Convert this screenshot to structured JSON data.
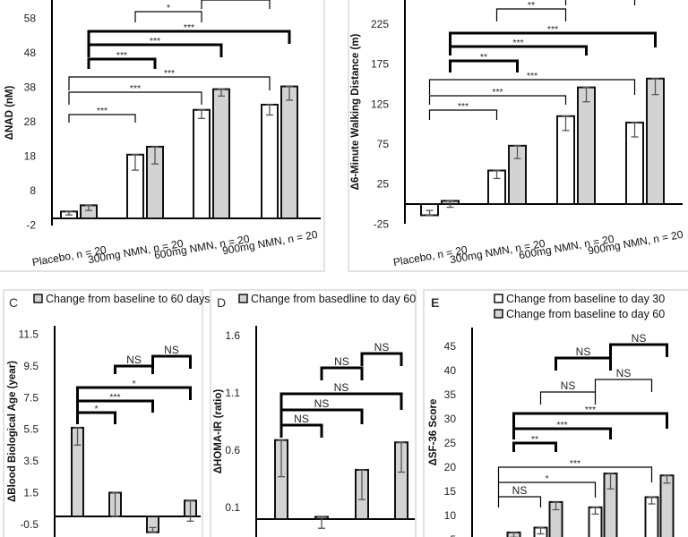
{
  "colors": {
    "day30": "#ffffff",
    "day60": "#d3d3d3",
    "stroke": "#111111",
    "panel_border": "#d9d9d9",
    "errbar": "#555555"
  },
  "chart_data": [
    {
      "panel": "A",
      "type": "bar",
      "ylabel": "ΔNAD (nM)",
      "categories": [
        "Placebo, n = 20",
        "300mg NMN, n = 20",
        "600mg NMN, n = 20",
        "900mg NMN, n = 20"
      ],
      "yticks": [
        -2,
        8,
        18,
        28,
        38,
        48,
        58
      ],
      "ylim": [
        -2,
        64
      ],
      "series": [
        {
          "name": "Change from baseline to day 30",
          "values": [
            2,
            18.5,
            31.5,
            33
          ],
          "err": [
            1,
            4.5,
            2.5,
            3
          ]
        },
        {
          "name": "Change from baseline to day 60",
          "values": [
            3.8,
            20.8,
            37.5,
            38.3
          ],
          "err": [
            1.5,
            5,
            2,
            4
          ]
        }
      ],
      "brackets": [
        {
          "from": [
            0,
            0
          ],
          "to": [
            1,
            0
          ],
          "label": "***",
          "thick": false
        },
        {
          "from": [
            0,
            0
          ],
          "to": [
            2,
            0
          ],
          "label": "***",
          "thick": false
        },
        {
          "from": [
            0,
            0
          ],
          "to": [
            3,
            0
          ],
          "label": "***",
          "thick": false
        },
        {
          "from": [
            0,
            1
          ],
          "to": [
            1,
            1
          ],
          "label": "***",
          "thick": true
        },
        {
          "from": [
            0,
            1
          ],
          "to": [
            2,
            1
          ],
          "label": "***",
          "thick": true
        },
        {
          "from": [
            0,
            1
          ],
          "to": [
            3,
            1
          ],
          "label": "***",
          "thick": true
        },
        {
          "from": [
            1,
            0
          ],
          "to": [
            2,
            0
          ],
          "label": "*",
          "thick": false
        },
        {
          "from": [
            2,
            0
          ],
          "to": [
            3,
            0
          ],
          "label": "",
          "thick": false
        }
      ]
    },
    {
      "panel": "B",
      "type": "bar",
      "ylabel": "Δ6-Minute Walking Distance (m)",
      "categories": [
        "Placebo, n = 20",
        "300mg NMN, n = 20",
        "600mg NMN, n = 20",
        "900mg NMN, n = 20"
      ],
      "yticks": [
        -25,
        25,
        75,
        125,
        175,
        225
      ],
      "ylim": [
        -25,
        255
      ],
      "series": [
        {
          "name": "Change from baseline to day 30",
          "values": [
            -14,
            42,
            110,
            102
          ],
          "err": [
            6,
            10,
            18,
            18
          ]
        },
        {
          "name": "Change from baseline to day 60",
          "values": [
            4,
            73,
            146,
            157
          ],
          "err": [
            8,
            16,
            18,
            20
          ]
        }
      ],
      "brackets": [
        {
          "from": [
            0,
            0
          ],
          "to": [
            1,
            0
          ],
          "label": "***",
          "thick": false
        },
        {
          "from": [
            0,
            0
          ],
          "to": [
            2,
            0
          ],
          "label": "***",
          "thick": false
        },
        {
          "from": [
            0,
            0
          ],
          "to": [
            3,
            0
          ],
          "label": "***",
          "thick": false
        },
        {
          "from": [
            0,
            1
          ],
          "to": [
            1,
            1
          ],
          "label": "**",
          "thick": true
        },
        {
          "from": [
            0,
            1
          ],
          "to": [
            2,
            1
          ],
          "label": "***",
          "thick": true
        },
        {
          "from": [
            0,
            1
          ],
          "to": [
            3,
            1
          ],
          "label": "***",
          "thick": true
        },
        {
          "from": [
            1,
            0
          ],
          "to": [
            2,
            0
          ],
          "label": "**",
          "thick": false
        },
        {
          "from": [
            2,
            0
          ],
          "to": [
            3,
            0
          ],
          "label": "",
          "thick": false
        }
      ]
    },
    {
      "panel": "C",
      "type": "bar",
      "ylabel": "ΔBlood Biological Age (year)",
      "legend": [
        "Change from baseline to 60 days"
      ],
      "yticks": [
        -0.5,
        1.5,
        3.5,
        5.5,
        7.5,
        9.5,
        11.5
      ],
      "ylim": [
        -1.2,
        12
      ],
      "series": [
        {
          "name": "Change from baseline to 60 days",
          "values": [
            5.6,
            1.5,
            -1.0,
            1.0
          ],
          "err": [
            1.1,
            1.5,
            0.3,
            1.3
          ]
        }
      ],
      "brackets": [
        {
          "from": [
            0,
            0
          ],
          "to": [
            1,
            0
          ],
          "label": "*",
          "thick": true
        },
        {
          "from": [
            0,
            0
          ],
          "to": [
            2,
            0
          ],
          "label": "***",
          "thick": true
        },
        {
          "from": [
            0,
            0
          ],
          "to": [
            3,
            0
          ],
          "label": "*",
          "thick": true
        },
        {
          "from": [
            1,
            0
          ],
          "to": [
            2,
            0
          ],
          "label": "NS",
          "thick": true
        },
        {
          "from": [
            2,
            0
          ],
          "to": [
            3,
            0
          ],
          "label": "NS",
          "thick": true
        }
      ]
    },
    {
      "panel": "D",
      "type": "bar",
      "ylabel": "ΔHOMA-IR (ratio)",
      "legend": [
        "Change from basedline to day 60"
      ],
      "yticks": [
        0.1,
        0.6,
        1.1,
        1.6
      ],
      "ylim": [
        -0.05,
        1.7
      ],
      "series": [
        {
          "name": "Change from basedline to day 60",
          "values": [
            0.69,
            0.02,
            0.43,
            0.67
          ],
          "err": [
            0.32,
            0.1,
            0.26,
            0.26
          ]
        }
      ],
      "brackets": [
        {
          "from": [
            0,
            0
          ],
          "to": [
            1,
            0
          ],
          "label": "NS",
          "thick": true
        },
        {
          "from": [
            0,
            0
          ],
          "to": [
            2,
            0
          ],
          "label": "NS",
          "thick": true
        },
        {
          "from": [
            0,
            0
          ],
          "to": [
            3,
            0
          ],
          "label": "NS",
          "thick": true
        },
        {
          "from": [
            1,
            0
          ],
          "to": [
            2,
            0
          ],
          "label": "NS",
          "thick": true
        },
        {
          "from": [
            2,
            0
          ],
          "to": [
            3,
            0
          ],
          "label": "NS",
          "thick": true
        }
      ]
    },
    {
      "panel": "E",
      "type": "bar",
      "ylabel": "ΔSF-36 Score",
      "legend": [
        "Change from baseline to day 30",
        "Change from baseline to day 60"
      ],
      "yticks": [
        5,
        10,
        15,
        20,
        25,
        30,
        35,
        40,
        45
      ],
      "ylim": [
        0,
        48
      ],
      "series": [
        {
          "name": "Change from baseline to day 30",
          "values": [
            3.5,
            7.5,
            11.7,
            13.8
          ],
          "err": [
            1,
            1.3,
            1.4,
            1.4
          ]
        },
        {
          "name": "Change from baseline to day 60",
          "values": [
            6.5,
            12.8,
            18.7,
            18.3
          ],
          "err": [
            1,
            1.6,
            3.2,
            1.6
          ]
        }
      ],
      "brackets": [
        {
          "from": [
            0,
            0
          ],
          "to": [
            1,
            0
          ],
          "label": "NS",
          "thick": false
        },
        {
          "from": [
            0,
            0
          ],
          "to": [
            2,
            0
          ],
          "label": "*",
          "thick": false
        },
        {
          "from": [
            0,
            0
          ],
          "to": [
            3,
            0
          ],
          "label": "***",
          "thick": false
        },
        {
          "from": [
            0,
            1
          ],
          "to": [
            1,
            1
          ],
          "label": "**",
          "thick": true
        },
        {
          "from": [
            0,
            1
          ],
          "to": [
            2,
            1
          ],
          "label": "***",
          "thick": true
        },
        {
          "from": [
            0,
            1
          ],
          "to": [
            3,
            1
          ],
          "label": "***",
          "thick": true
        },
        {
          "from": [
            1,
            0
          ],
          "to": [
            2,
            0
          ],
          "label": "NS",
          "thick": false
        },
        {
          "from": [
            2,
            0
          ],
          "to": [
            3,
            0
          ],
          "label": "NS",
          "thick": false
        },
        {
          "from": [
            1,
            1
          ],
          "to": [
            2,
            1
          ],
          "label": "NS",
          "thick": true
        },
        {
          "from": [
            2,
            1
          ],
          "to": [
            3,
            1
          ],
          "label": "NS",
          "thick": true
        }
      ]
    }
  ]
}
